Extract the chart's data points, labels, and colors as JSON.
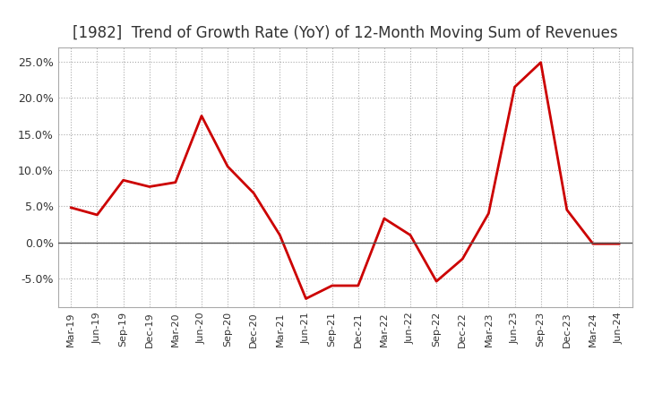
{
  "title": "[1982]  Trend of Growth Rate (YoY) of 12-Month Moving Sum of Revenues",
  "title_fontsize": 12,
  "line_color": "#cc0000",
  "line_width": 2.0,
  "background_color": "#ffffff",
  "plot_bg_color": "#ffffff",
  "grid_color": "#aaaaaa",
  "ylim": [
    -0.09,
    0.27
  ],
  "yticks": [
    -0.05,
    0.0,
    0.05,
    0.1,
    0.15,
    0.2,
    0.25
  ],
  "x_labels": [
    "Mar-19",
    "Jun-19",
    "Sep-19",
    "Dec-19",
    "Mar-20",
    "Jun-20",
    "Sep-20",
    "Dec-20",
    "Mar-21",
    "Jun-21",
    "Sep-21",
    "Dec-21",
    "Mar-22",
    "Jun-22",
    "Sep-22",
    "Dec-22",
    "Mar-23",
    "Jun-23",
    "Sep-23",
    "Dec-23",
    "Mar-24",
    "Jun-24"
  ],
  "y_values": [
    0.048,
    0.038,
    0.086,
    0.077,
    0.083,
    0.175,
    0.105,
    0.068,
    0.01,
    -0.078,
    -0.06,
    -0.06,
    0.033,
    0.01,
    -0.054,
    -0.023,
    0.04,
    0.215,
    0.249,
    0.045,
    -0.002,
    -0.002
  ]
}
